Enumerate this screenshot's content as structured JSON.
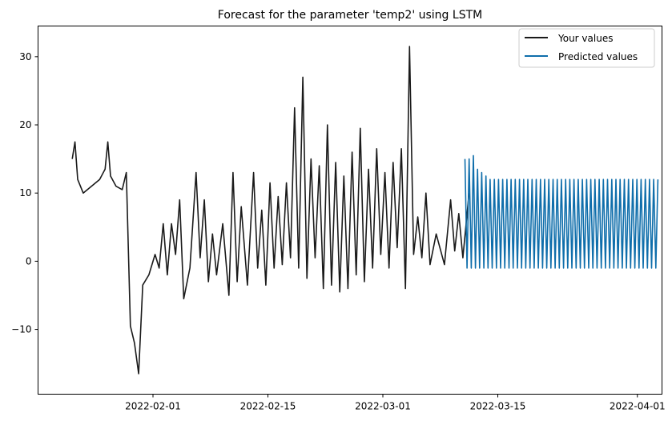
{
  "chart_data": {
    "type": "line",
    "title": "Forecast for the parameter 'temp2' using LSTM",
    "xlabel": "",
    "ylabel": "",
    "xlim": [
      "2022-01-18",
      "2022-04-04"
    ],
    "ylim": [
      -19.5,
      34.5
    ],
    "x_ticks": [
      "2022-02-01",
      "2022-02-15",
      "2022-03-01",
      "2022-03-15",
      "2022-04-01"
    ],
    "y_ticks": [
      -10,
      0,
      10,
      20,
      30
    ],
    "grid": false,
    "legend_position": "top-right",
    "series": [
      {
        "name": "Your values",
        "color": "#1a1a1a",
        "points": [
          [
            "2022-01-22",
            15.0
          ],
          [
            "2022-01-22",
            17.5
          ],
          [
            "2022-01-22",
            12.0
          ],
          [
            "2022-01-23",
            10.0
          ],
          [
            "2022-01-25",
            12.0
          ],
          [
            "2022-01-26",
            13.5
          ],
          [
            "2022-01-26",
            17.5
          ],
          [
            "2022-01-26",
            12.5
          ],
          [
            "2022-01-27",
            11.0
          ],
          [
            "2022-01-28",
            10.5
          ],
          [
            "2022-01-28",
            13.0
          ],
          [
            "2022-01-29",
            -9.5
          ],
          [
            "2022-01-29",
            -12.0
          ],
          [
            "2022-01-30",
            -16.5
          ],
          [
            "2022-01-30",
            -3.5
          ],
          [
            "2022-01-31",
            -2.0
          ],
          [
            "2022-02-01",
            1.0
          ],
          [
            "2022-02-01",
            -1.0
          ],
          [
            "2022-02-02",
            5.5
          ],
          [
            "2022-02-02",
            -2.0
          ],
          [
            "2022-02-03",
            5.5
          ],
          [
            "2022-02-03",
            1.0
          ],
          [
            "2022-02-04",
            9.0
          ],
          [
            "2022-02-04",
            -5.5
          ],
          [
            "2022-02-05",
            -1.0
          ],
          [
            "2022-02-06",
            13.0
          ],
          [
            "2022-02-06",
            0.5
          ],
          [
            "2022-02-07",
            9.0
          ],
          [
            "2022-02-07",
            -3.0
          ],
          [
            "2022-02-08",
            4.0
          ],
          [
            "2022-02-08",
            -2.0
          ],
          [
            "2022-02-09",
            5.5
          ],
          [
            "2022-02-10",
            -5.0
          ],
          [
            "2022-02-10",
            13.0
          ],
          [
            "2022-02-11",
            -3.0
          ],
          [
            "2022-02-11",
            8.0
          ],
          [
            "2022-02-12",
            -3.5
          ],
          [
            "2022-02-13",
            13.0
          ],
          [
            "2022-02-13",
            -1.0
          ],
          [
            "2022-02-14",
            7.5
          ],
          [
            "2022-02-14",
            -3.5
          ],
          [
            "2022-02-15",
            11.5
          ],
          [
            "2022-02-15",
            -1.0
          ],
          [
            "2022-02-16",
            9.5
          ],
          [
            "2022-02-16",
            -0.5
          ],
          [
            "2022-02-17",
            11.5
          ],
          [
            "2022-02-17",
            0.5
          ],
          [
            "2022-02-18",
            22.5
          ],
          [
            "2022-02-18",
            -1.0
          ],
          [
            "2022-02-19",
            27.0
          ],
          [
            "2022-02-19",
            -2.5
          ],
          [
            "2022-02-20",
            15.0
          ],
          [
            "2022-02-20",
            0.5
          ],
          [
            "2022-02-21",
            14.0
          ],
          [
            "2022-02-21",
            -4.0
          ],
          [
            "2022-02-22",
            20.0
          ],
          [
            "2022-02-22",
            -3.5
          ],
          [
            "2022-02-23",
            14.5
          ],
          [
            "2022-02-23",
            -4.5
          ],
          [
            "2022-02-24",
            12.5
          ],
          [
            "2022-02-24",
            -4.0
          ],
          [
            "2022-02-25",
            16.0
          ],
          [
            "2022-02-25",
            -2.0
          ],
          [
            "2022-02-26",
            19.5
          ],
          [
            "2022-02-26",
            -3.0
          ],
          [
            "2022-02-27",
            13.5
          ],
          [
            "2022-02-27",
            -1.0
          ],
          [
            "2022-02-28",
            16.5
          ],
          [
            "2022-02-28",
            1.0
          ],
          [
            "2022-03-01",
            13.0
          ],
          [
            "2022-03-01",
            -1.0
          ],
          [
            "2022-03-02",
            14.5
          ],
          [
            "2022-03-02",
            2.0
          ],
          [
            "2022-03-03",
            16.5
          ],
          [
            "2022-03-03",
            -4.0
          ],
          [
            "2022-03-04",
            31.5
          ],
          [
            "2022-03-04",
            1.0
          ],
          [
            "2022-03-05",
            6.5
          ],
          [
            "2022-03-05",
            0.5
          ],
          [
            "2022-03-06",
            10.0
          ],
          [
            "2022-03-06",
            -0.5
          ],
          [
            "2022-03-07",
            4.0
          ],
          [
            "2022-03-08",
            -0.5
          ],
          [
            "2022-03-09",
            9.0
          ],
          [
            "2022-03-09",
            1.5
          ],
          [
            "2022-03-10",
            7.0
          ],
          [
            "2022-03-10",
            0.5
          ],
          [
            "2022-03-11",
            10.0
          ]
        ]
      },
      {
        "name": "Predicted values",
        "color": "#0f6eab",
        "start": "2022-03-11",
        "end": "2022-04-03",
        "peak_high": 12.0,
        "trough_low": -1.0,
        "first_peaks": [
          15.0,
          15.0,
          15.5,
          13.5,
          13.0,
          12.5
        ],
        "cycles": 46
      }
    ]
  }
}
